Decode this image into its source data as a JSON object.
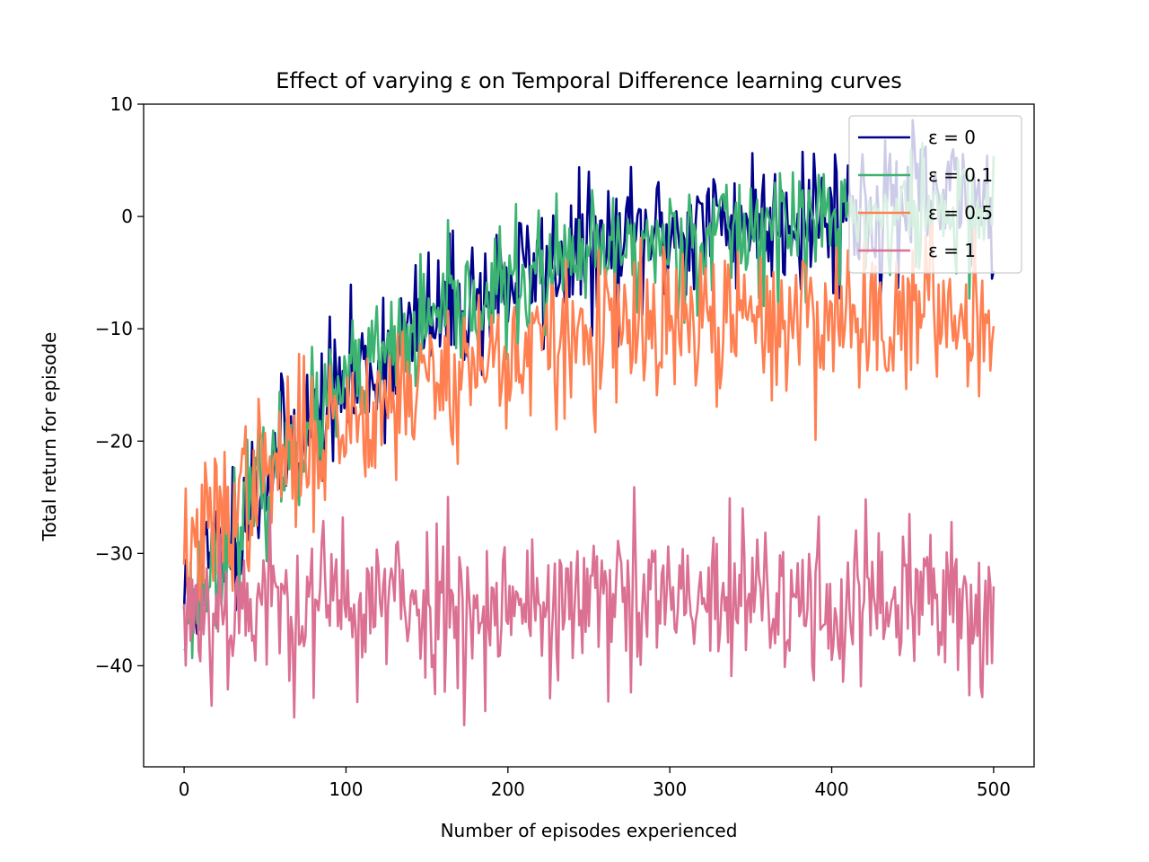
{
  "chart_data": {
    "type": "line",
    "title": "Effect of varying ε on Temporal Difference learning curves",
    "xlabel": "Number of episodes experienced",
    "ylabel": "Total return for episode",
    "xlim": [
      -25,
      525
    ],
    "ylim": [
      -49,
      10
    ],
    "xticks": [
      0,
      100,
      200,
      300,
      400,
      500
    ],
    "yticks": [
      10,
      0,
      -10,
      -20,
      -30,
      -40
    ],
    "xtick_labels": [
      "0",
      "100",
      "200",
      "300",
      "400",
      "500"
    ],
    "ytick_labels": [
      "10",
      "0",
      "−10",
      "−20",
      "−30",
      "−40"
    ],
    "grid": false,
    "legend_location": "upper right",
    "n_points": 501,
    "series": [
      {
        "name": "ε = 0",
        "color": "#00008b",
        "trend": {
          "start": -35,
          "end": 1.5,
          "rate": 0.9
        },
        "noise": 3.2,
        "seed": 11
      },
      {
        "name": "ε = 0.1",
        "color": "#3cb371",
        "trend": {
          "start": -36,
          "end": 0.5,
          "rate": 0.95
        },
        "noise": 2.8,
        "seed": 23
      },
      {
        "name": "ε = 0.5",
        "color": "#ff7f50",
        "trend": {
          "start": -31,
          "end": -8.5,
          "rate": 1.0
        },
        "noise": 3.5,
        "seed": 37
      },
      {
        "name": "ε = 1",
        "color": "#db7093",
        "trend": {
          "start": -34.5,
          "end": -34.5,
          "rate": 1.0
        },
        "noise": 3.8,
        "seed": 53
      }
    ]
  }
}
